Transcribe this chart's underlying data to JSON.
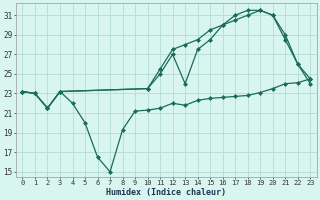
{
  "xlabel": "Humidex (Indice chaleur)",
  "background_color": "#d8f5f0",
  "grid_color": "#b8e0d8",
  "line_color": "#1a6b5a",
  "xlim": [
    -0.5,
    23.5
  ],
  "ylim": [
    14.5,
    32.2
  ],
  "xticks": [
    0,
    1,
    2,
    3,
    4,
    5,
    6,
    7,
    8,
    9,
    10,
    11,
    12,
    13,
    14,
    15,
    16,
    17,
    18,
    19,
    20,
    21,
    22,
    23
  ],
  "yticks": [
    15,
    17,
    19,
    21,
    23,
    25,
    27,
    29,
    31
  ],
  "line1_x": [
    0,
    1,
    2,
    3,
    4,
    5,
    6,
    7,
    8,
    9,
    10,
    11,
    12,
    13,
    14,
    15,
    16,
    17,
    18,
    19,
    20,
    21,
    22,
    23
  ],
  "line1_y": [
    23.2,
    23.0,
    21.5,
    23.2,
    22.0,
    20.0,
    16.5,
    15.0,
    19.3,
    21.2,
    21.3,
    21.5,
    22.0,
    21.8,
    22.3,
    22.5,
    22.6,
    22.7,
    22.8,
    23.1,
    23.5,
    24.0,
    24.1,
    24.5
  ],
  "line2_x": [
    0,
    1,
    2,
    3,
    10,
    11,
    12,
    13,
    14,
    15,
    16,
    17,
    18,
    19,
    20,
    21,
    22,
    23
  ],
  "line2_y": [
    23.2,
    23.0,
    21.5,
    23.2,
    23.5,
    25.0,
    27.0,
    24.0,
    27.5,
    28.5,
    30.0,
    31.0,
    31.5,
    31.5,
    31.0,
    29.0,
    26.0,
    24.0
  ],
  "line3_x": [
    0,
    1,
    2,
    3,
    10,
    11,
    12,
    13,
    14,
    15,
    16,
    17,
    18,
    19,
    20,
    21,
    22,
    23
  ],
  "line3_y": [
    23.2,
    23.0,
    21.5,
    23.2,
    23.5,
    25.5,
    27.5,
    28.0,
    28.5,
    29.5,
    30.0,
    30.5,
    31.0,
    31.5,
    31.0,
    28.5,
    26.0,
    24.5
  ]
}
